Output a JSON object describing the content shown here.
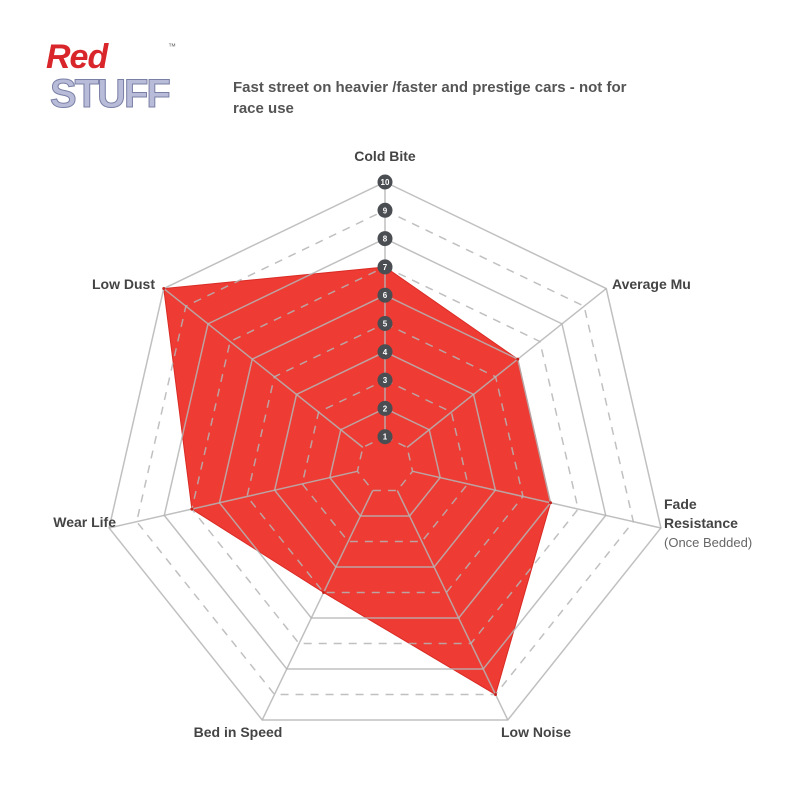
{
  "logo": {
    "line1": "Red",
    "line2": "STUFF",
    "tm": "™"
  },
  "chart_data": {
    "type": "radar",
    "title": "Fast street on heavier /faster and prestige cars - not for race use",
    "axes": [
      {
        "label": "Cold Bite",
        "sub": ""
      },
      {
        "label": "Average Mu",
        "sub": ""
      },
      {
        "label": "Fade",
        "label2": "Resistance",
        "sub": "(Once Bedded)"
      },
      {
        "label": "Low Noise",
        "sub": ""
      },
      {
        "label": "Bed in Speed",
        "sub": ""
      },
      {
        "label": "Wear Life",
        "sub": ""
      },
      {
        "label": "Low Dust",
        "sub": ""
      }
    ],
    "values": [
      7,
      6,
      6,
      9,
      5,
      7,
      10
    ],
    "range": [
      0,
      10
    ],
    "tick_labels": [
      "1",
      "2",
      "3",
      "4",
      "5",
      "6",
      "7",
      "8",
      "9",
      "10"
    ],
    "fill_color": "#ee3b33",
    "grid_color": "#b5b5b5"
  }
}
